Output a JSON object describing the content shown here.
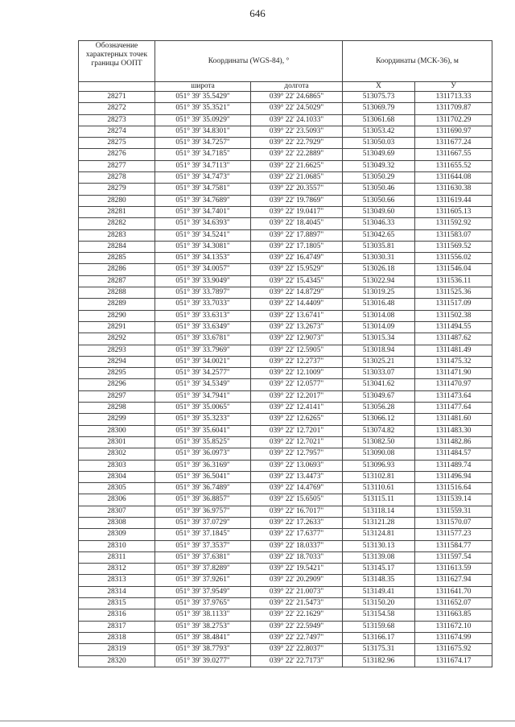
{
  "page_number": "646",
  "table": {
    "headers": {
      "point": "Обозначение характерных точек границы ООПТ",
      "wgs": "Координаты (WGS-84), °",
      "msk": "Координаты (МСК-36), м",
      "lat": "широта",
      "lon": "долгота",
      "x": "X",
      "y": "У"
    },
    "rows": [
      [
        "28271",
        "051° 39' 35.5429\"",
        "039° 22' 24.6865\"",
        "513075.73",
        "1311713.33"
      ],
      [
        "28272",
        "051° 39' 35.3521\"",
        "039° 22' 24.5029\"",
        "513069.79",
        "1311709.87"
      ],
      [
        "28273",
        "051° 39' 35.0929\"",
        "039° 22' 24.1033\"",
        "513061.68",
        "1311702.29"
      ],
      [
        "28274",
        "051° 39' 34.8301\"",
        "039° 22' 23.5093\"",
        "513053.42",
        "1311690.97"
      ],
      [
        "28275",
        "051° 39' 34.7257\"",
        "039° 22' 22.7929\"",
        "513050.03",
        "1311677.24"
      ],
      [
        "28276",
        "051° 39' 34.7185\"",
        "039° 22' 22.2889\"",
        "513049.69",
        "1311667.55"
      ],
      [
        "28277",
        "051° 39' 34.7113\"",
        "039° 22' 21.6625\"",
        "513049.32",
        "1311655.52"
      ],
      [
        "28278",
        "051° 39' 34.7473\"",
        "039° 22' 21.0685\"",
        "513050.29",
        "1311644.08"
      ],
      [
        "28279",
        "051° 39' 34.7581\"",
        "039° 22' 20.3557\"",
        "513050.46",
        "1311630.38"
      ],
      [
        "28280",
        "051° 39' 34.7689\"",
        "039° 22' 19.7869\"",
        "513050.66",
        "1311619.44"
      ],
      [
        "28281",
        "051° 39' 34.7401\"",
        "039° 22' 19.0417\"",
        "513049.60",
        "1311605.13"
      ],
      [
        "28282",
        "051° 39' 34.6393\"",
        "039° 22' 18.4045\"",
        "513046.33",
        "1311592.92"
      ],
      [
        "28283",
        "051° 39' 34.5241\"",
        "039° 22' 17.8897\"",
        "513042.65",
        "1311583.07"
      ],
      [
        "28284",
        "051° 39' 34.3081\"",
        "039° 22' 17.1805\"",
        "513035.81",
        "1311569.52"
      ],
      [
        "28285",
        "051° 39' 34.1353\"",
        "039° 22' 16.4749\"",
        "513030.31",
        "1311556.02"
      ],
      [
        "28286",
        "051° 39' 34.0057\"",
        "039° 22' 15.9529\"",
        "513026.18",
        "1311546.04"
      ],
      [
        "28287",
        "051° 39' 33.9049\"",
        "039° 22' 15.4345\"",
        "513022.94",
        "1311536.11"
      ],
      [
        "28288",
        "051° 39' 33.7897\"",
        "039° 22' 14.8729\"",
        "513019.25",
        "1311525.36"
      ],
      [
        "28289",
        "051° 39' 33.7033\"",
        "039° 22' 14.4409\"",
        "513016.48",
        "1311517.09"
      ],
      [
        "28290",
        "051° 39' 33.6313\"",
        "039° 22' 13.6741\"",
        "513014.08",
        "1311502.38"
      ],
      [
        "28291",
        "051° 39' 33.6349\"",
        "039° 22' 13.2673\"",
        "513014.09",
        "1311494.55"
      ],
      [
        "28292",
        "051° 39' 33.6781\"",
        "039° 22' 12.9073\"",
        "513015.34",
        "1311487.62"
      ],
      [
        "28293",
        "051° 39' 33.7969\"",
        "039° 22' 12.5905\"",
        "513018.94",
        "1311481.49"
      ],
      [
        "28294",
        "051° 39' 34.0021\"",
        "039° 22' 12.2737\"",
        "513025.21",
        "1311475.32"
      ],
      [
        "28295",
        "051° 39' 34.2577\"",
        "039° 22' 12.1009\"",
        "513033.07",
        "1311471.90"
      ],
      [
        "28296",
        "051° 39' 34.5349\"",
        "039° 22' 12.0577\"",
        "513041.62",
        "1311470.97"
      ],
      [
        "28297",
        "051° 39' 34.7941\"",
        "039° 22' 12.2017\"",
        "513049.67",
        "1311473.64"
      ],
      [
        "28298",
        "051° 39' 35.0065\"",
        "039° 22' 12.4141\"",
        "513056.28",
        "1311477.64"
      ],
      [
        "28299",
        "051° 39' 35.3233\"",
        "039° 22' 12.6265\"",
        "513066.12",
        "1311481.60"
      ],
      [
        "28300",
        "051° 39' 35.6041\"",
        "039° 22' 12.7201\"",
        "513074.82",
        "1311483.30"
      ],
      [
        "28301",
        "051° 39' 35.8525\"",
        "039° 22' 12.7021\"",
        "513082.50",
        "1311482.86"
      ],
      [
        "28302",
        "051° 39' 36.0973\"",
        "039° 22' 12.7957\"",
        "513090.08",
        "1311484.57"
      ],
      [
        "28303",
        "051° 39' 36.3169\"",
        "039° 22' 13.0693\"",
        "513096.93",
        "1311489.74"
      ],
      [
        "28304",
        "051° 39' 36.5041\"",
        "039° 22' 13.4473\"",
        "513102.81",
        "1311496.94"
      ],
      [
        "28305",
        "051° 39' 36.7489\"",
        "039° 22' 14.4769\"",
        "513110.61",
        "1311516.64"
      ],
      [
        "28306",
        "051° 39' 36.8857\"",
        "039° 22' 15.6505\"",
        "513115.11",
        "1311539.14"
      ],
      [
        "28307",
        "051° 39' 36.9757\"",
        "039° 22' 16.7017\"",
        "513118.14",
        "1311559.31"
      ],
      [
        "28308",
        "051° 39' 37.0729\"",
        "039° 22' 17.2633\"",
        "513121.28",
        "1311570.07"
      ],
      [
        "28309",
        "051° 39' 37.1845\"",
        "039° 22' 17.6377\"",
        "513124.81",
        "1311577.23"
      ],
      [
        "28310",
        "051° 39' 37.3537\"",
        "039° 22' 18.0337\"",
        "513130.13",
        "1311584.77"
      ],
      [
        "28311",
        "051° 39' 37.6381\"",
        "039° 22' 18.7033\"",
        "513139.08",
        "1311597.54"
      ],
      [
        "28312",
        "051° 39' 37.8289\"",
        "039° 22' 19.5421\"",
        "513145.17",
        "1311613.59"
      ],
      [
        "28313",
        "051° 39' 37.9261\"",
        "039° 22' 20.2909\"",
        "513148.35",
        "1311627.94"
      ],
      [
        "28314",
        "051° 39' 37.9549\"",
        "039° 22' 21.0073\"",
        "513149.41",
        "1311641.70"
      ],
      [
        "28315",
        "051° 39' 37.9765\"",
        "039° 22' 21.5473\"",
        "513150.20",
        "1311652.07"
      ],
      [
        "28316",
        "051° 39' 38.1133\"",
        "039° 22' 22.1629\"",
        "513154.58",
        "1311663.85"
      ],
      [
        "28317",
        "051° 39' 38.2753\"",
        "039° 22' 22.5949\"",
        "513159.68",
        "1311672.10"
      ],
      [
        "28318",
        "051° 39' 38.4841\"",
        "039° 22' 22.7497\"",
        "513166.17",
        "1311674.99"
      ],
      [
        "28319",
        "051° 39' 38.7793\"",
        "039° 22' 22.8037\"",
        "513175.31",
        "1311675.92"
      ],
      [
        "28320",
        "051° 39' 39.0277\"",
        "039° 22' 22.7173\"",
        "513182.96",
        "1311674.17"
      ]
    ]
  }
}
